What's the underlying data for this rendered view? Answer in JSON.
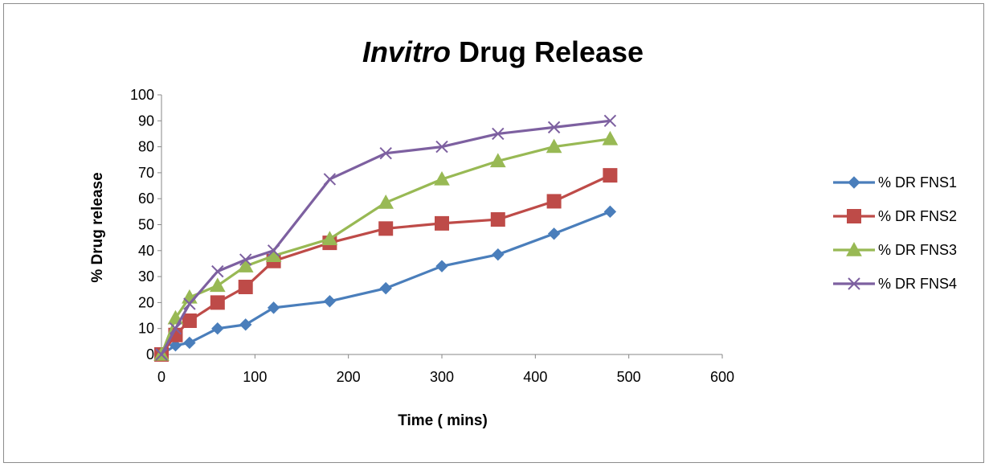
{
  "chart_data": {
    "type": "line",
    "title_italic": "Invitro",
    "title_rest": " Drug Release",
    "xlabel": "Time ( mins)",
    "ylabel": "% Drug release",
    "xlim": [
      0,
      600
    ],
    "ylim": [
      0,
      100
    ],
    "xticks": [
      0,
      100,
      200,
      300,
      400,
      500,
      600
    ],
    "yticks": [
      0,
      10,
      20,
      30,
      40,
      50,
      60,
      70,
      80,
      90,
      100
    ],
    "grid": false,
    "legend_position": "right",
    "x": [
      0,
      15,
      30,
      60,
      90,
      120,
      180,
      240,
      300,
      360,
      420,
      480
    ],
    "series": [
      {
        "name": "% DR FNS1",
        "color": "#4a7ebb",
        "marker": "diamond",
        "values": [
          0,
          3.5,
          4.5,
          10,
          11.5,
          18,
          20.5,
          25.5,
          34,
          38.5,
          46.5,
          55
        ]
      },
      {
        "name": "% DR FNS2",
        "color": "#be4b48",
        "marker": "square",
        "values": [
          0,
          7.5,
          13,
          20,
          26,
          36,
          43,
          48.5,
          50.5,
          52,
          59,
          69
        ]
      },
      {
        "name": "% DR FNS3",
        "color": "#98b954",
        "marker": "triangle",
        "values": [
          0,
          14,
          22,
          26.5,
          34,
          38,
          44.5,
          58.5,
          67.5,
          74.5,
          80,
          83
        ]
      },
      {
        "name": "% DR FNS4",
        "color": "#7d60a0",
        "marker": "x",
        "values": [
          0,
          10,
          19.5,
          32,
          36.5,
          40,
          67.5,
          77.5,
          80,
          85,
          87.5,
          90
        ]
      }
    ]
  }
}
